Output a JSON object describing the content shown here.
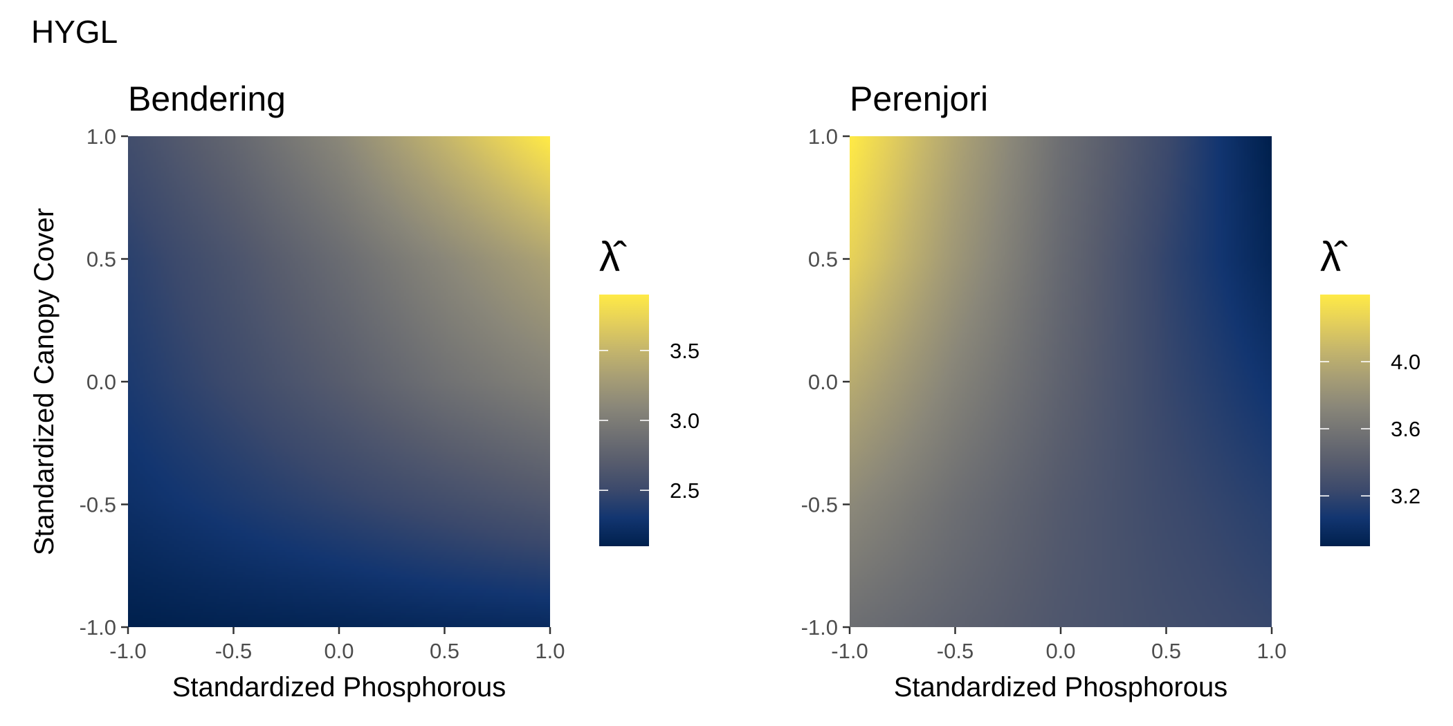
{
  "figure": {
    "title": "HYGL"
  },
  "colors": {
    "scale": [
      "#00204d",
      "#123570",
      "#3b496c",
      "#575c6d",
      "#707173",
      "#8a8779",
      "#a69d75",
      "#c4b56c",
      "#e4cf5b",
      "#ffea46"
    ],
    "tick_text": "#4d4d4d",
    "axis_text": "#000000"
  },
  "chart_data": [
    {
      "type": "heatmap",
      "title": "Bendering",
      "xlabel": "Standardized Phosphorous",
      "ylabel": "Standardized Canopy Cover",
      "xlim": [
        -1.0,
        1.0
      ],
      "ylim": [
        -1.0,
        1.0
      ],
      "x_ticks": [
        "-1.0",
        "-0.5",
        "0.0",
        "0.5",
        "1.0"
      ],
      "y_ticks": [
        "1.0",
        "0.5",
        "0.0",
        "-0.5",
        "-1.0"
      ],
      "legend": {
        "title": "λ̂",
        "min": 2.1,
        "max": 3.9,
        "ticks": [
          "3.5",
          "3.0",
          "2.5"
        ],
        "tick_values": [
          3.5,
          3.0,
          2.5
        ]
      },
      "x": [
        -1.0,
        -0.5,
        0.0,
        0.5,
        1.0
      ],
      "y": [
        1.0,
        0.5,
        0.0,
        -0.5,
        -1.0
      ],
      "values": [
        [
          2.55,
          2.8,
          3.1,
          3.5,
          3.9
        ],
        [
          2.42,
          2.62,
          2.85,
          3.1,
          3.35
        ],
        [
          2.35,
          2.52,
          2.7,
          2.9,
          3.05
        ],
        [
          2.25,
          2.35,
          2.45,
          2.55,
          2.65
        ],
        [
          2.1,
          2.13,
          2.15,
          2.18,
          2.2
        ]
      ]
    },
    {
      "type": "heatmap",
      "title": "Perenjori",
      "xlabel": "Standardized Phosphorous",
      "ylabel": "",
      "xlim": [
        -1.0,
        1.0
      ],
      "ylim": [
        -1.0,
        1.0
      ],
      "x_ticks": [
        "-1.0",
        "-0.5",
        "0.0",
        "0.5",
        "1.0"
      ],
      "y_ticks": [
        "1.0",
        "0.5",
        "0.0",
        "-0.5",
        "-1.0"
      ],
      "legend": {
        "title": "λ̂",
        "min": 2.9,
        "max": 4.4,
        "ticks": [
          "4.0",
          "3.6",
          "3.2"
        ],
        "tick_values": [
          4.0,
          3.6,
          3.2
        ]
      },
      "x": [
        -1.0,
        -0.5,
        0.0,
        0.5,
        1.0
      ],
      "y": [
        1.0,
        0.5,
        0.0,
        -0.5,
        -1.0
      ],
      "values": [
        [
          4.4,
          3.95,
          3.55,
          3.25,
          2.9
        ],
        [
          4.25,
          3.85,
          3.5,
          3.2,
          2.95
        ],
        [
          4.0,
          3.7,
          3.45,
          3.22,
          3.05
        ],
        [
          3.75,
          3.55,
          3.38,
          3.25,
          3.15
        ],
        [
          3.55,
          3.45,
          3.35,
          3.28,
          3.22
        ]
      ]
    }
  ]
}
